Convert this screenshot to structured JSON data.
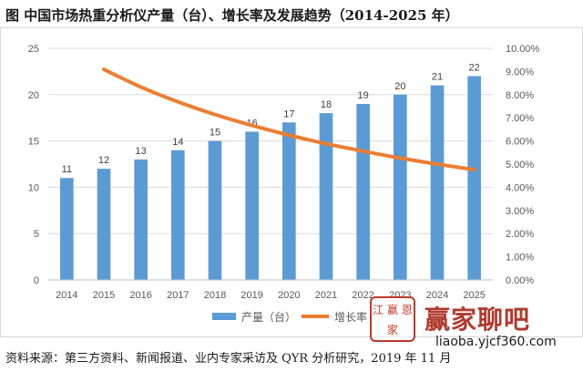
{
  "figure_title": "图  中国市场热重分析仪产量（台）、增长率及发展趋势（2014-2025 年）",
  "source_note": "资料来源：第三方资料、新闻报道、业内专家采访及 QYR 分析研究，2019 年 11 月",
  "watermark": {
    "seal_text": "江 赢 恩 家",
    "logo_text": "赢家聊吧",
    "site_text": "liaoba.yjcf360.com"
  },
  "colors": {
    "bar": "#5b9bd5",
    "line": "#ed7d31",
    "grid": "#d9d9d9",
    "axis_text": "#595959"
  },
  "chart_data": {
    "type": "bar",
    "categories": [
      "2014",
      "2015",
      "2016",
      "2017",
      "2018",
      "2019",
      "2020",
      "2021",
      "2022",
      "2023",
      "2024",
      "2025"
    ],
    "series": [
      {
        "name": "产量（台）",
        "kind": "bar",
        "axis": "left",
        "values": [
          11,
          12,
          13,
          14,
          15,
          16,
          17,
          18,
          19,
          20,
          21,
          22
        ]
      },
      {
        "name": "增长率",
        "kind": "line",
        "axis": "right",
        "values": [
          null,
          0.0909,
          0.0833,
          0.0769,
          0.0714,
          0.0667,
          0.0625,
          0.0588,
          0.0556,
          0.0526,
          0.05,
          0.0476
        ]
      }
    ],
    "y_left": {
      "min": 0,
      "max": 25,
      "ticks": [
        0,
        5,
        10,
        15,
        20,
        25
      ]
    },
    "y_right": {
      "min": 0,
      "max": 0.1,
      "ticks": [
        0,
        0.01,
        0.02,
        0.03,
        0.04,
        0.05,
        0.06,
        0.07,
        0.08,
        0.09,
        0.1
      ],
      "tick_labels": [
        "0.00%",
        "1.00%",
        "2.00%",
        "3.00%",
        "4.00%",
        "5.00%",
        "6.00%",
        "7.00%",
        "8.00%",
        "9.00%",
        "10.00%"
      ]
    },
    "data_labels": [
      "11",
      "12",
      "13",
      "14",
      "15",
      "16",
      "17",
      "18",
      "19",
      "20",
      "21",
      "22"
    ],
    "grid": true,
    "legend_position": "bottom",
    "legend": [
      "产量（台）",
      "增长率"
    ]
  }
}
